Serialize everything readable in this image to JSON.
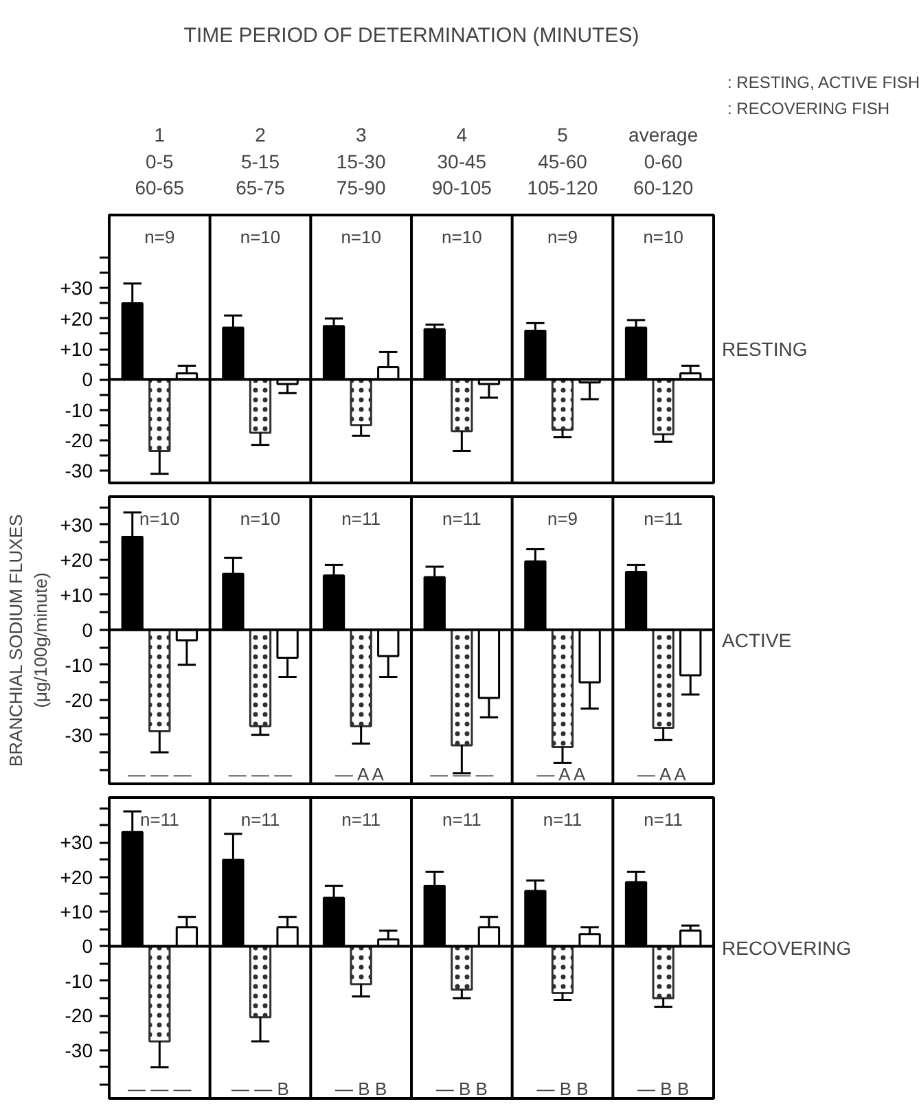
{
  "chart_data": [
    {
      "type": "bar",
      "title": "TIME PERIOD OF DETERMINATION (MINUTES)",
      "subtitle": "RESTING",
      "categories": [
        "1\n0-5\n60-65",
        "2\n5-15\n65-75",
        "3\n15-30\n75-90",
        "4\n30-45\n90-105",
        "5\n45-60\n105-120",
        "average\n0-60\n60-120"
      ],
      "series": [
        {
          "color": "#000000",
          "values": [
            25,
            17,
            17.5,
            16.5,
            16,
            17
          ],
          "errors": [
            [
              25,
              31.5
            ],
            [
              17,
              21
            ],
            [
              17.5,
              20
            ],
            [
              16.5,
              18
            ],
            [
              16,
              18.5
            ],
            [
              17,
              19.5
            ]
          ]
        },
        {
          "color": "#303030",
          "values": [
            -23.5,
            -17.5,
            -15,
            -17,
            -16.5,
            -18
          ],
          "errors": [
            [
              -31,
              -23.5
            ],
            [
              -21.5,
              -17.5
            ],
            [
              -18.5,
              -15
            ],
            [
              -23.5,
              -17
            ],
            [
              -19,
              -16.5
            ],
            [
              -20.5,
              -18
            ]
          ]
        },
        {
          "color": "#ffffff",
          "values": [
            2,
            -1.5,
            4,
            -1.5,
            -1,
            2
          ],
          "errors": [
            [
              2,
              4.5
            ],
            [
              -4.5,
              -1.5
            ],
            [
              4,
              9
            ],
            [
              -6,
              -1.5
            ],
            [
              -6.5,
              -1
            ],
            [
              2,
              4.5
            ]
          ]
        }
      ],
      "ylim": [
        -34,
        54
      ],
      "yticks": [
        {
          "value": -30,
          "label": "-30"
        },
        {
          "value": -25,
          "label": null
        },
        {
          "value": -20,
          "label": "-20"
        },
        {
          "value": -15,
          "label": null
        },
        {
          "value": -10,
          "label": "-10"
        },
        {
          "value": -5,
          "label": null
        },
        0,
        {
          "value": 5,
          "label": null
        },
        {
          "value": 10,
          "label": "+10"
        },
        {
          "value": 15,
          "label": null
        },
        {
          "value": 20,
          "label": "+20"
        },
        {
          "value": 25,
          "label": null
        },
        {
          "value": 30,
          "label": "+30"
        },
        {
          "value": 35,
          "label": null
        },
        {
          "value": 40,
          "label": null
        }
      ],
      "ref_lines": [
        {
          "axis": "y",
          "value": 0
        }
      ],
      "annotations": [
        ": RESTING, ACTIVE FISH",
        ": RECOVERING FISH",
        "n=9",
        "n=10",
        "n=10",
        "n=10",
        "n=9",
        "n=10"
      ],
      "grid": false
    },
    {
      "type": "bar",
      "subtitle": "ACTIVE",
      "ylabel": "BRANCHIAL SODIUM FLUXES (μg/100g/minute)",
      "categories": [
        null,
        null,
        null,
        null,
        null,
        null
      ],
      "series": [
        {
          "color": "#000000",
          "values": [
            26.5,
            16,
            15.5,
            15,
            19.5,
            16.5
          ],
          "errors": [
            [
              26.5,
              33.5
            ],
            [
              16,
              20.5
            ],
            [
              15.5,
              18.5
            ],
            [
              15,
              18
            ],
            [
              19.5,
              23
            ],
            [
              16.5,
              18.5
            ]
          ]
        },
        {
          "color": "#303030",
          "values": [
            -29,
            -27.5,
            -27.5,
            -33,
            -33.5,
            -28
          ],
          "errors": [
            [
              -35,
              -29
            ],
            [
              -30,
              -27.5
            ],
            [
              -32.5,
              -27.5
            ],
            [
              -41,
              -33
            ],
            [
              -38,
              -33.5
            ],
            [
              -31.5,
              -28
            ]
          ]
        },
        {
          "color": "#ffffff",
          "values": [
            -3,
            -8,
            -7.5,
            -19.5,
            -15,
            -13
          ],
          "errors": [
            [
              -10,
              -3
            ],
            [
              -13.5,
              -8
            ],
            [
              -13.5,
              -7.5
            ],
            [
              -25,
              -19.5
            ],
            [
              -22.5,
              -15
            ],
            [
              -18.5,
              -13
            ]
          ]
        }
      ],
      "ylim": [
        -44,
        38
      ],
      "yticks": [
        {
          "value": -40,
          "label": null
        },
        {
          "value": -35,
          "label": null
        },
        {
          "value": -30,
          "label": "-30"
        },
        {
          "value": -25,
          "label": null
        },
        {
          "value": -20,
          "label": "-20"
        },
        {
          "value": -15,
          "label": null
        },
        {
          "value": -10,
          "label": "-10"
        },
        {
          "value": -5,
          "label": null
        },
        0,
        {
          "value": 5,
          "label": null
        },
        {
          "value": 10,
          "label": "+10"
        },
        {
          "value": 15,
          "label": null
        },
        {
          "value": 20,
          "label": "+20"
        },
        {
          "value": 25,
          "label": null
        },
        {
          "value": 30,
          "label": "+30"
        },
        {
          "value": 35,
          "label": null
        }
      ],
      "ref_lines": [
        {
          "axis": "y",
          "value": 0
        }
      ],
      "annotations": [
        "n=10",
        "n=10",
        "n=11",
        "n=11",
        "n=9",
        "n=11",
        "— — —",
        "— — —",
        "— A A",
        "— — —",
        "— A A",
        "— A A"
      ],
      "grid": false
    },
    {
      "type": "bar",
      "subtitle": "RECOVERING",
      "categories": [
        null,
        null,
        null,
        null,
        null,
        null
      ],
      "series": [
        {
          "color": "#000000",
          "values": [
            33,
            25,
            14,
            17.5,
            16,
            18.5
          ],
          "errors": [
            [
              33,
              39
            ],
            [
              25,
              32.5
            ],
            [
              14,
              17.5
            ],
            [
              17.5,
              21.5
            ],
            [
              16,
              19
            ],
            [
              18.5,
              21.5
            ]
          ]
        },
        {
          "color": "#303030",
          "values": [
            -27.5,
            -20.5,
            -11,
            -12.5,
            -13.5,
            -15
          ],
          "errors": [
            [
              -35,
              -27.5
            ],
            [
              -27.5,
              -20.5
            ],
            [
              -14.5,
              -11
            ],
            [
              -15,
              -12.5
            ],
            [
              -15.5,
              -13.5
            ],
            [
              -17.5,
              -15
            ]
          ]
        },
        {
          "color": "#ffffff",
          "values": [
            5.5,
            5.5,
            2,
            5.5,
            3.5,
            4.5
          ],
          "errors": [
            [
              5.5,
              8.5
            ],
            [
              5.5,
              8.5
            ],
            [
              2,
              4.5
            ],
            [
              5.5,
              8.5
            ],
            [
              3.5,
              5.5
            ],
            [
              4.5,
              6
            ]
          ]
        }
      ],
      "ylim": [
        -44,
        43
      ],
      "yticks": [
        {
          "value": -40,
          "label": null
        },
        {
          "value": -35,
          "label": null
        },
        {
          "value": -30,
          "label": "-30"
        },
        {
          "value": -25,
          "label": null
        },
        {
          "value": -20,
          "label": "-20"
        },
        {
          "value": -15,
          "label": null
        },
        {
          "value": -10,
          "label": "-10"
        },
        {
          "value": -5,
          "label": null
        },
        0,
        {
          "value": 5,
          "label": null
        },
        {
          "value": 10,
          "label": "+10"
        },
        {
          "value": 15,
          "label": null
        },
        {
          "value": 20,
          "label": "+20"
        },
        {
          "value": 25,
          "label": null
        },
        {
          "value": 30,
          "label": "+30"
        },
        {
          "value": 35,
          "label": null
        },
        {
          "value": 40,
          "label": null
        }
      ],
      "ref_lines": [
        {
          "axis": "y",
          "value": 0
        }
      ],
      "annotations": [
        "n=11",
        "n=11",
        "n=11",
        "n=11",
        "n=11",
        "n=11",
        "— — —",
        "— — B",
        "— B B",
        "— B B",
        "— B B",
        "— B B"
      ],
      "grid": false
    }
  ]
}
